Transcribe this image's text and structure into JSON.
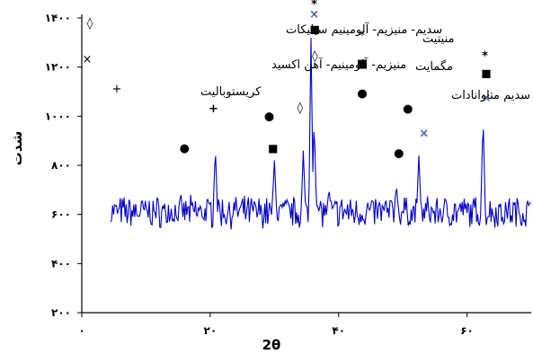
{
  "chart_data": {
    "type": "line",
    "xlabel": "2θ",
    "ylabel": "شدت",
    "xlim": [
      0,
      70
    ],
    "ylim": [
      200,
      1400
    ],
    "x_ticks": [
      0,
      20,
      40,
      60
    ],
    "x_tick_labels": [
      "۰",
      "۲۰",
      "۴۰",
      "۶۰"
    ],
    "y_ticks": [
      200,
      400,
      600,
      800,
      1000,
      1200,
      1400
    ],
    "y_tick_labels": [
      "۲۰۰",
      "۴۰۰",
      "۶۰۰",
      "۸۰۰",
      "۱۰۰۰",
      "۱۲۰۰",
      "۱۴۰۰"
    ],
    "series_color": "#0000cc",
    "noise": {
      "x_start": 4.5,
      "x_end": 70,
      "step": 0.15,
      "baseline": 610,
      "amplitude": 55
    },
    "peaks": [
      {
        "x": 20.8,
        "y": 875
      },
      {
        "x": 30.0,
        "y": 820
      },
      {
        "x": 34.5,
        "y": 860
      },
      {
        "x": 35.7,
        "y": 1320
      },
      {
        "x": 36.2,
        "y": 990
      },
      {
        "x": 38.5,
        "y": 705
      },
      {
        "x": 49.0,
        "y": 720
      },
      {
        "x": 52.5,
        "y": 840
      },
      {
        "x": 62.5,
        "y": 1000
      }
    ],
    "markers": [
      {
        "symbol": "●",
        "x": 16.0,
        "y": 855
      },
      {
        "symbol": "+",
        "x": 20.5,
        "y": 1015
      },
      {
        "symbol": "●",
        "x": 29.2,
        "y": 985
      },
      {
        "symbol": "■",
        "x": 29.8,
        "y": 855
      },
      {
        "symbol": "◊",
        "x": 34.0,
        "y": 1020
      },
      {
        "symbol": "◊",
        "x": 36.3,
        "y": 1230
      },
      {
        "symbol": "■",
        "x": 36.3,
        "y": 1340
      },
      {
        "symbol": "×",
        "x": 36.2,
        "y": 1400
      },
      {
        "symbol": "*",
        "x": 36.2,
        "y": 1440
      },
      {
        "symbol": "●",
        "x": 50.8,
        "y": 1015
      },
      {
        "symbol": "×",
        "x": 53.3,
        "y": 915
      },
      {
        "symbol": "●",
        "x": 49.4,
        "y": 835
      },
      {
        "symbol": "*",
        "x": 62.8,
        "y": 1230
      },
      {
        "symbol": "■",
        "x": 63.0,
        "y": 1160
      },
      {
        "symbol": "×",
        "x": 63.0,
        "y": 1060
      }
    ],
    "legend": [
      {
        "label": "سدیم- منیزیم- آلومینیم سیلیکات",
        "symbol": "◊"
      },
      {
        "label": "منیزیم- آلومینیم- آهن اکسید",
        "symbol": "×"
      },
      {
        "label": "کریستوبالیت",
        "symbol": "+"
      },
      {
        "label": "منیتیت",
        "symbol": "*"
      },
      {
        "label": "مگمایت",
        "symbol": "■"
      },
      {
        "label": "سدیم متاوانادات",
        "symbol": "●"
      }
    ]
  }
}
